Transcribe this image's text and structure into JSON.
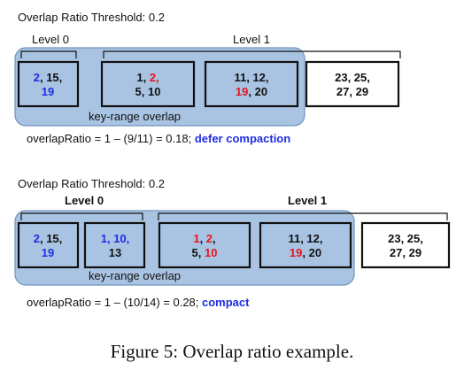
{
  "colors": {
    "overlap_fill": "#a9c4e3",
    "overlap_stroke": "#6f93bd",
    "file_fill": "#a9c4e3",
    "red": "#e8141c",
    "blue": "#1f2de0",
    "black": "#111111"
  },
  "top": {
    "threshold": "Overlap Ratio Threshold: 0.2",
    "level0": "Level 0",
    "level1": "Level 1",
    "overlap_label": "key-range overlap",
    "formula": "overlapRatio = 1 – (9/11) = 0.18; ",
    "decision": "defer compaction"
  },
  "bottom": {
    "threshold": "Overlap Ratio Threshold: 0.2",
    "level0": "Level 0",
    "level1": "Level 1",
    "overlap_label": "key-range overlap",
    "formula": "overlapRatio = 1 – (10/14) = 0.28; ",
    "decision": "compact"
  },
  "caption": "Figure 5: Overlap ratio example.",
  "tokens": {
    "t2": "2",
    "t15": "15,",
    "t19": "19",
    "t1": "1,",
    "t2b": "2,",
    "t5": "5,",
    "t10": "10",
    "t11": "11, 12,",
    "t19b": "19",
    "t20": ", 20",
    "t23": "23, 25,",
    "t27": "27, 29",
    "b2": "2",
    "b15": "15,",
    "b19": "19",
    "b1": "1,",
    "b10": "10,",
    "b13": "13",
    "b1r": "1",
    "b2r": "2",
    "b5": "5,",
    "b10r": "10",
    "b11": "11, 12,",
    "b19r": "19",
    "b20": ", 20",
    "b23": "23, 25,",
    "b27": "27, 29",
    "comma": ",",
    "commasp": ", "
  }
}
